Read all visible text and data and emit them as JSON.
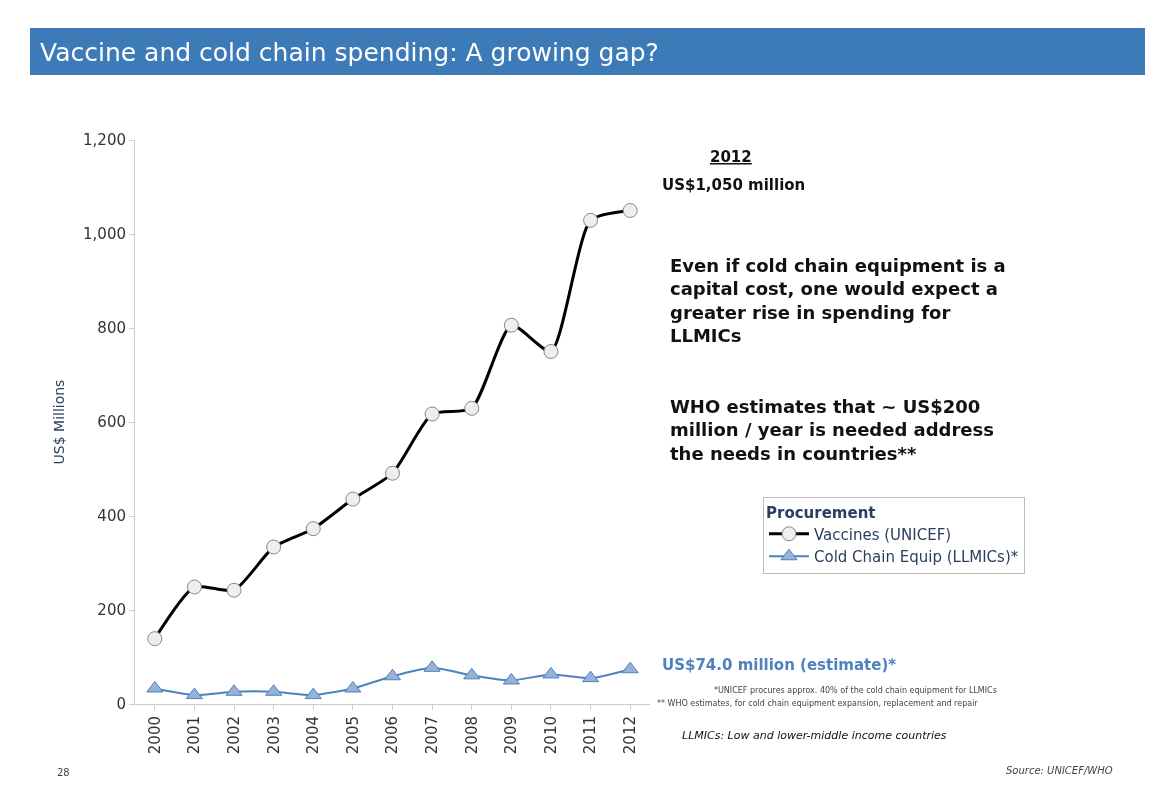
{
  "chart_data": {
    "type": "line",
    "title": "Vaccine and cold chain spending: A growing gap?",
    "ylabel": "US$ Millions",
    "legend_title": "Procurement",
    "categories": [
      "2000",
      "2001",
      "2002",
      "2003",
      "2004",
      "2005",
      "2006",
      "2007",
      "2008",
      "2009",
      "2010",
      "2011",
      "2012"
    ],
    "series": [
      {
        "name": "Vaccines (UNICEF)",
        "color": "#000000",
        "marker": "circle",
        "values": [
          139,
          249,
          242,
          334,
          373,
          436,
          491,
          617,
          629,
          806,
          750,
          1029,
          1050
        ]
      },
      {
        "name": "Cold Chain Equip (LLMICs)*",
        "color": "#4f81bd",
        "marker": "triangle",
        "values": [
          33,
          19,
          26,
          26,
          19,
          33,
          59,
          77,
          61,
          50,
          63,
          55,
          74
        ]
      }
    ],
    "ylim": [
      0,
      1200
    ],
    "yticks": [
      0,
      200,
      400,
      600,
      800,
      {
        "value": 1000,
        "label": "1,000"
      },
      {
        "value": 1200,
        "label": "1,200"
      }
    ],
    "legend": "bottom right",
    "annotations": [
      "2012",
      {
        "text": "US$1,050 million",
        "x": "2012",
        "y": 1050
      },
      "Even if cold chain equipment is a capital cost, one would expect a greater rise in spending for LLMICs",
      "WHO estimates that ~ US$200 million / year is needed address the needs in countries**",
      {
        "text": "US$74.0 million (estimate)*",
        "x": "2012",
        "y": 74
      },
      "*UNICEF procures approx. 40% of the cold chain equipment for LLMICs",
      "** WHO estimates, for cold chain equipment expansion, replacement and repair",
      "LLMICs: Low and lower-middle income countries",
      "Source: UNICEF/WHO",
      "28"
    ]
  }
}
